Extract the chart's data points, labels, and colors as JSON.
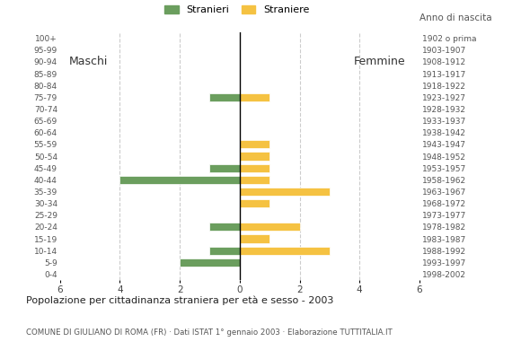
{
  "age_groups_bottom_to_top": [
    "0-4",
    "5-9",
    "10-14",
    "15-19",
    "20-24",
    "25-29",
    "30-34",
    "35-39",
    "40-44",
    "45-49",
    "50-54",
    "55-59",
    "60-64",
    "65-69",
    "70-74",
    "75-79",
    "80-84",
    "85-89",
    "90-94",
    "95-99",
    "100+"
  ],
  "birth_years_bottom_to_top": [
    "1998-2002",
    "1993-1997",
    "1988-1992",
    "1983-1987",
    "1978-1982",
    "1973-1977",
    "1968-1972",
    "1963-1967",
    "1958-1962",
    "1953-1957",
    "1948-1952",
    "1943-1947",
    "1938-1942",
    "1933-1937",
    "1928-1932",
    "1923-1927",
    "1918-1922",
    "1913-1917",
    "1908-1912",
    "1903-1907",
    "1902 o prima"
  ],
  "males_bottom_to_top": [
    0,
    2,
    1,
    0,
    1,
    0,
    0,
    0,
    4,
    1,
    0,
    0,
    0,
    0,
    0,
    1,
    0,
    0,
    0,
    0,
    0
  ],
  "females_bottom_to_top": [
    0,
    0,
    3,
    1,
    2,
    0,
    1,
    3,
    1,
    1,
    1,
    1,
    0,
    0,
    0,
    1,
    0,
    0,
    0,
    0,
    0
  ],
  "male_color": "#6b9e5e",
  "female_color": "#f5c242",
  "title": "Popolazione per cittadinanza straniera per età e sesso - 2003",
  "subtitle": "COMUNE DI GIULIANO DI ROMA (FR) · Dati ISTAT 1° gennaio 2003 · Elaborazione TUTTITALIA.IT",
  "legend_male": "Stranieri",
  "legend_female": "Straniere",
  "grid_color": "#cccccc",
  "background_color": "#ffffff",
  "bar_edge_color": "#ffffff"
}
